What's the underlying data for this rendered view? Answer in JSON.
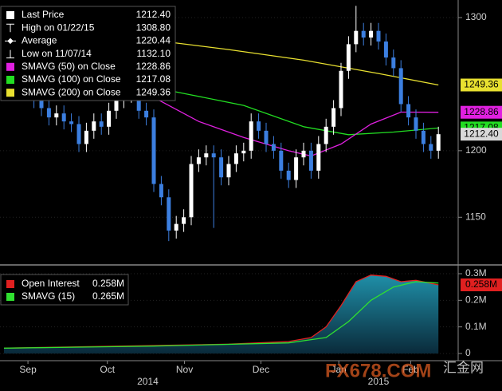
{
  "chart_data": [
    {
      "type": "candlestick",
      "up_color": "#ffffff",
      "down_color": "#3c7fe0",
      "open": [
        1275,
        1270,
        1265,
        1258,
        1245,
        1238,
        1232,
        1225,
        1228,
        1222,
        1220,
        1205,
        1215,
        1222,
        1218,
        1230,
        1238,
        1242,
        1245,
        1230,
        1225,
        1175,
        1165,
        1140,
        1145,
        1150,
        1190,
        1195,
        1198,
        1195,
        1180,
        1190,
        1198,
        1200,
        1222,
        1215,
        1205,
        1200,
        1185,
        1178,
        1195,
        1200,
        1185,
        1205,
        1218,
        1232,
        1260,
        1280,
        1290,
        1285,
        1290,
        1282,
        1270,
        1262,
        1235,
        1225,
        1215,
        1205,
        1200
      ],
      "high": [
        1281,
        1276,
        1271,
        1264,
        1251,
        1244,
        1238,
        1234,
        1234,
        1228,
        1226,
        1221,
        1228,
        1228,
        1236,
        1244,
        1248,
        1251,
        1251,
        1236,
        1231,
        1181,
        1171,
        1151,
        1156,
        1196,
        1201,
        1204,
        1204,
        1201,
        1196,
        1204,
        1206,
        1228,
        1228,
        1221,
        1211,
        1206,
        1191,
        1201,
        1206,
        1206,
        1211,
        1224,
        1238,
        1266,
        1286,
        1308.8,
        1296,
        1296,
        1296,
        1288,
        1276,
        1268,
        1241,
        1231,
        1221,
        1211,
        1218
      ],
      "low": [
        1264,
        1259,
        1252,
        1239,
        1232,
        1226,
        1219,
        1219,
        1216,
        1214,
        1199,
        1199,
        1209,
        1212,
        1212,
        1224,
        1232,
        1236,
        1224,
        1219,
        1169,
        1159,
        1132.1,
        1134,
        1139,
        1144,
        1184,
        1189,
        1142,
        1174,
        1174,
        1184,
        1192,
        1194,
        1209,
        1199,
        1194,
        1179,
        1172,
        1172,
        1189,
        1179,
        1179,
        1199,
        1212,
        1226,
        1254,
        1274,
        1279,
        1279,
        1276,
        1264,
        1256,
        1229,
        1219,
        1209,
        1199,
        1194,
        1194
      ],
      "close": [
        1270,
        1265,
        1258,
        1245,
        1238,
        1232,
        1225,
        1228,
        1222,
        1220,
        1205,
        1215,
        1222,
        1218,
        1230,
        1238,
        1242,
        1245,
        1230,
        1225,
        1175,
        1165,
        1140,
        1145,
        1150,
        1190,
        1195,
        1198,
        1195,
        1180,
        1190,
        1198,
        1200,
        1222,
        1215,
        1205,
        1200,
        1185,
        1178,
        1195,
        1200,
        1185,
        1205,
        1218,
        1232,
        1260,
        1280,
        1290,
        1285,
        1290,
        1282,
        1270,
        1262,
        1235,
        1225,
        1215,
        1205,
        1200,
        1212.4
      ],
      "legend_extra": [
        {
          "label": "Last Price",
          "value": "1212.40"
        },
        {
          "label": "High on 01/22/15",
          "value": "1308.80"
        },
        {
          "label": "Average",
          "value": "1220.44"
        },
        {
          "label": "Low on 11/07/14",
          "value": "1132.10"
        }
      ],
      "series": [
        {
          "name": "SMAVG (50) on Close",
          "color": "#e020e0",
          "value_label": "1228.86",
          "x": [
            14,
            20,
            26,
            32,
            38,
            41,
            45,
            49,
            53,
            58
          ],
          "values": [
            1255,
            1240,
            1222,
            1210,
            1200,
            1196,
            1205,
            1220,
            1229,
            1228.86
          ]
        },
        {
          "name": "SMAVG (100) on Close",
          "color": "#22dd22",
          "value_label": "1217.08",
          "x": [
            0,
            8,
            16,
            24,
            32,
            40,
            46,
            52,
            58
          ],
          "values": [
            1272,
            1262,
            1252,
            1243,
            1234,
            1218,
            1212,
            1214,
            1217.08
          ]
        },
        {
          "name": "SMAVG (200) on Close",
          "color": "#e8e030",
          "value_label": "1249.36",
          "x": [
            0,
            10,
            20,
            30,
            40,
            50,
            58
          ],
          "values": [
            1290,
            1288,
            1283,
            1276,
            1268,
            1258,
            1249.36
          ]
        }
      ],
      "ylim": [
        1116.6,
        1313.2
      ],
      "yticks": [
        1150,
        1200,
        1300
      ]
    },
    {
      "type": "area",
      "series": [
        {
          "name": "Open Interest",
          "color": "#e02020",
          "value_label": "0.258M",
          "x": [
            0,
            10,
            20,
            30,
            38,
            41,
            43,
            45,
            47,
            49,
            51,
            53,
            55,
            58
          ],
          "values": [
            0.02,
            0.025,
            0.03,
            0.035,
            0.045,
            0.06,
            0.1,
            0.18,
            0.27,
            0.295,
            0.29,
            0.27,
            0.275,
            0.258
          ]
        },
        {
          "name": "SMAVG (15)",
          "color": "#30e030",
          "value_label": "0.265M",
          "x": [
            0,
            20,
            38,
            43,
            46,
            49,
            52,
            55,
            58
          ],
          "values": [
            0.02,
            0.028,
            0.04,
            0.06,
            0.12,
            0.2,
            0.25,
            0.27,
            0.265
          ]
        }
      ],
      "ylim": [
        -0.021,
        0.324
      ],
      "yticks": [
        {
          "value": 0,
          "label": "0"
        },
        {
          "value": 0.1,
          "label": "0.1M"
        },
        {
          "value": 0.2,
          "label": "0.2M"
        },
        {
          "value": 0.3,
          "label": "0.3M"
        }
      ],
      "xticks": [
        {
          "value": 3.2,
          "label": "Sep"
        },
        {
          "value": 13.8,
          "label": "Oct"
        },
        {
          "value": 24.1,
          "label": "Nov"
        },
        {
          "value": 34.3,
          "label": "Dec"
        },
        {
          "value": 44.7,
          "label": "Jan"
        },
        {
          "value": 54.3,
          "label": "Feb"
        }
      ],
      "year_ticks": [
        {
          "value": 19.2,
          "label": "2014"
        },
        {
          "value": 50,
          "label": "2015"
        }
      ]
    }
  ],
  "watermark": [
    "FX678.COM",
    "汇金网"
  ]
}
